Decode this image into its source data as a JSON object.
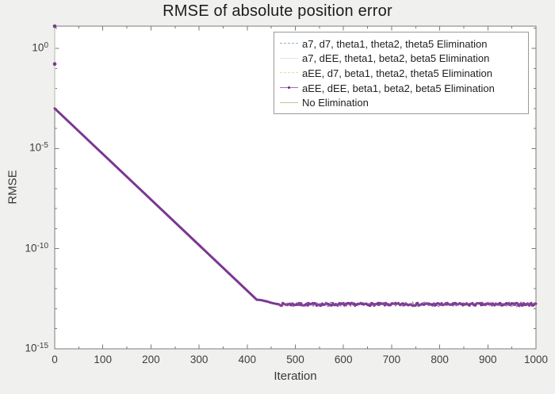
{
  "figure": {
    "background": "#f0f0ee",
    "plot_background": "#ffffff",
    "axis_color": "#7b7b7b",
    "label_color": "#3d3d3d"
  },
  "chart_data": {
    "type": "line",
    "title": "RMSE of absolute position error",
    "xlabel": "Iteration",
    "ylabel": "RMSE",
    "xlim": [
      0,
      1000
    ],
    "x_ticks": [
      0,
      100,
      200,
      300,
      400,
      500,
      600,
      700,
      800,
      900,
      1000
    ],
    "x_minor_tick_step": 50,
    "y_scale": "log10",
    "y_major_tick_exponents": [
      0,
      -5,
      -10,
      -15
    ],
    "y_minor_tick_exponents": [
      1,
      -1,
      -2,
      -3,
      -4,
      -6,
      -7,
      -8,
      -9,
      -11,
      -12,
      -13,
      -14
    ],
    "ylim_exponents": [
      -15,
      1.108
    ],
    "grid": false,
    "legend_position": "top-right",
    "series": [
      {
        "label": "a7, d7, theta1, theta2, theta5 Elimination",
        "color": "#8fb6cf",
        "line_style": "dashed",
        "marker": "none"
      },
      {
        "label": "a7, dEE, theta1, beta2, beta5 Elimination",
        "color": "#f4ddd0",
        "line_style": "solid",
        "marker": "none"
      },
      {
        "label": "aEE, d7, beta1, theta2, theta5 Elimination",
        "color": "#ecd9a0",
        "line_style": "dashed",
        "marker": "none"
      },
      {
        "label": "aEE, dEE, beta1, beta2, beta5 Elimination",
        "color": "#7b3790",
        "line_style": "solid",
        "marker": "point",
        "marker_color": "#5a2a6a"
      },
      {
        "label": "No Elimination",
        "color": "#c2c398",
        "line_style": "solid",
        "marker": "none"
      }
    ],
    "visible_trace": {
      "initial_value_exponent": 1.108,
      "initial_marker_exponent": -0.78,
      "descent_start_iteration": 0,
      "descent_start_exponent": -3.0,
      "descent_end_iteration": 420,
      "descent_end_exponent": -12.55,
      "floor_start_iteration": 470,
      "floor_exponent": -12.78,
      "noise_amplitude_exponent": 0.07,
      "end_iteration": 1000,
      "transient_line_color": "#ccd2c1"
    }
  }
}
